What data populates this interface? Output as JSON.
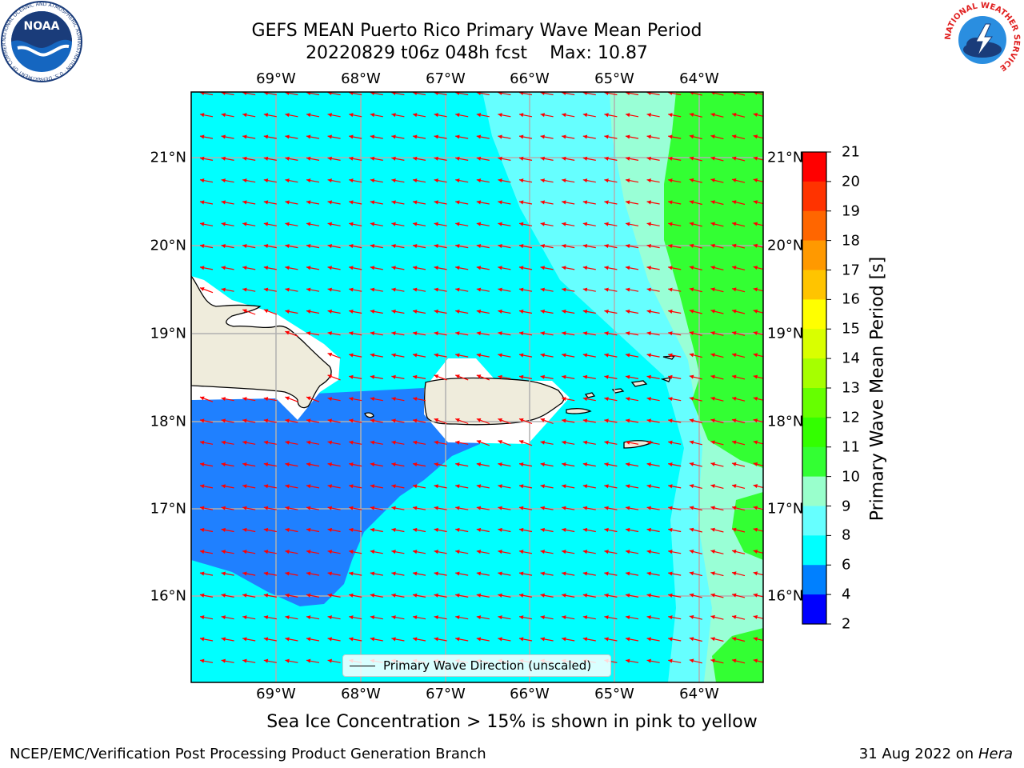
{
  "title_line1": "GEFS MEAN Puerto Rico Primary Wave Mean Period",
  "title_date": "20220829 t06z 048h fcst",
  "title_max": "Max: 10.87",
  "lon_labels": [
    "69°W",
    "68°W",
    "67°W",
    "66°W",
    "65°W",
    "64°W"
  ],
  "lat_labels": [
    "21°N",
    "20°N",
    "19°N",
    "18°N",
    "17°N",
    "16°N"
  ],
  "legend_label": "Primary Wave Direction (unscaled)",
  "colorbar": {
    "title": "Primary Wave Mean Period [s]",
    "ticks": [
      "21",
      "20",
      "19",
      "18",
      "17",
      "16",
      "15",
      "14",
      "13",
      "12",
      "11",
      "10",
      "9",
      "8",
      "6",
      "4",
      "2"
    ],
    "colors": [
      "#ff0000",
      "#ff3300",
      "#ff6600",
      "#ff9900",
      "#ffc400",
      "#ffff00",
      "#d9ff00",
      "#a6ff00",
      "#66ff00",
      "#33ff00",
      "#33ff33",
      "#99ffcc",
      "#66ffff",
      "#00ffff",
      "#0080ff",
      "#0000ff"
    ]
  },
  "fill_colors": {
    "period_4_6": "#1f80ff",
    "period_6_8": "#00ffff",
    "period_8_9": "#66ffff",
    "period_9_10": "#99ffd6",
    "period_10_11": "#33ff33",
    "land": "#efecdc",
    "arrow": "#ff0000"
  },
  "caption": "Sea Ice Concentration > 15% is shown in pink to yellow",
  "footer_left": "NCEP/EMC/Verification Post Processing Product Generation Branch",
  "footer_date": "31 Aug 2022 on",
  "footer_host": "Hera",
  "logos": {
    "noaa_text": "NOAA",
    "noaa_ring": "NATIONAL OCEANIC AND ATMOSPHERIC ADMINISTRATION · U.S. DEPARTMENT OF COMMERCE",
    "nws_ring": "NATIONAL WEATHER SERVICE"
  }
}
